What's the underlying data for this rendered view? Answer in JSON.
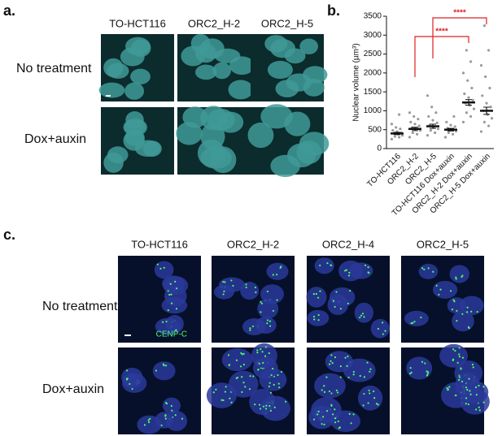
{
  "panel_a": {
    "label": "a.",
    "columns": [
      "TO-HCT116",
      "ORC2_H-2",
      "ORC2_H-5"
    ],
    "rows": [
      "No treatment",
      "Dox+auxin"
    ]
  },
  "chart_data": {
    "type": "dot",
    "label": "b.",
    "ylabel": "Nuclear volume (µm³)",
    "categories": [
      "TO-HCT116",
      "ORC2_H-2",
      "ORC2_H-5",
      "TO-HCT116 Dox+auxin",
      "ORC2_H-2 Dox+auxin",
      "ORC2_H-5 Dox+auxin"
    ],
    "values": [
      400,
      520,
      590,
      500,
      1220,
      1000
    ],
    "errors": [
      30,
      45,
      55,
      35,
      75,
      95
    ],
    "points": [
      [
        250,
        300,
        320,
        350,
        380,
        400,
        420,
        450,
        480,
        520,
        560,
        650,
        900
      ],
      [
        300,
        380,
        420,
        480,
        520,
        550,
        600,
        650,
        700,
        780,
        850,
        950
      ],
      [
        350,
        420,
        480,
        520,
        580,
        620,
        680,
        750,
        850,
        950,
        1100,
        1400
      ],
      [
        300,
        380,
        420,
        460,
        500,
        540,
        580,
        620,
        700,
        850
      ],
      [
        700,
        850,
        950,
        1050,
        1150,
        1200,
        1280,
        1350,
        1450,
        1600,
        1800,
        2000,
        2300,
        2600
      ],
      [
        450,
        600,
        700,
        800,
        900,
        1000,
        1100,
        1200,
        1400,
        1600,
        1900,
        2200,
        2600,
        3250
      ]
    ],
    "point_color": "#9a9a9a",
    "mean_color": "#111111",
    "annotation_color": "#e02020",
    "ylim": [
      0,
      3500
    ],
    "yticks": [
      0,
      500,
      1000,
      1500,
      2000,
      2500,
      3000,
      3500
    ],
    "annotations": [
      {
        "text": "****",
        "from": 1,
        "to": 4
      },
      {
        "text": "****",
        "from": 2,
        "to": 5
      }
    ]
  },
  "panel_c": {
    "label": "c.",
    "columns": [
      "TO-HCT116",
      "ORC2_H-2",
      "ORC2_H-4",
      "ORC2_H-5"
    ],
    "rows": [
      "No treatment",
      "Dox+auxin"
    ],
    "stain_label": "CENP-C"
  }
}
